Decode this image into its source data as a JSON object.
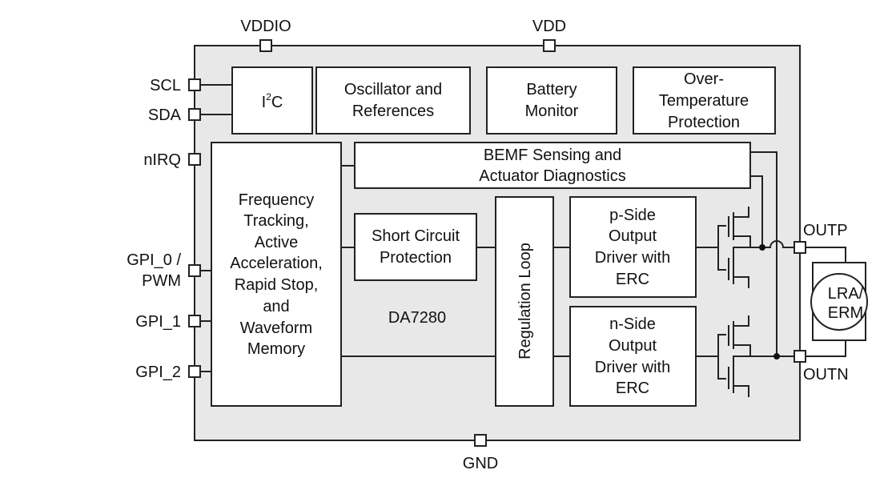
{
  "pins": {
    "vddio": "VDDIO",
    "vdd": "VDD",
    "gnd": "GND",
    "scl": "SCL",
    "sda": "SDA",
    "nirq": "nIRQ",
    "gpi0_line1": "GPI_0 /",
    "gpi0_line2": "PWM",
    "gpi1": "GPI_1",
    "gpi2": "GPI_2",
    "outp": "OUTP",
    "outn": "OUTN"
  },
  "blocks": {
    "i2c_main": "I",
    "i2c_sup": "2",
    "i2c_tail": "C",
    "osc": [
      "Oscillator and",
      "References"
    ],
    "battery": [
      "Battery",
      "Monitor"
    ],
    "overtemp": [
      "Over-",
      "Temperature",
      "Protection"
    ],
    "freq": [
      "Frequency",
      "Tracking,",
      "Active",
      "Acceleration,",
      "Rapid Stop,",
      "and",
      "Waveform",
      "Memory"
    ],
    "bemf": [
      "BEMF Sensing and",
      "Actuator Diagnostics"
    ],
    "short": [
      "Short Circuit",
      "Protection"
    ],
    "regulation": "Regulation Loop",
    "pside": [
      "p-Side",
      "Output",
      "Driver with",
      "ERC"
    ],
    "nside": [
      "n-Side",
      "Output",
      "Driver with",
      "ERC"
    ],
    "chip_name": "DA7280",
    "actuator": [
      "LRA/",
      "ERM"
    ]
  },
  "colors": {
    "chip_fill": "#e8e8e8",
    "line": "#222222"
  }
}
